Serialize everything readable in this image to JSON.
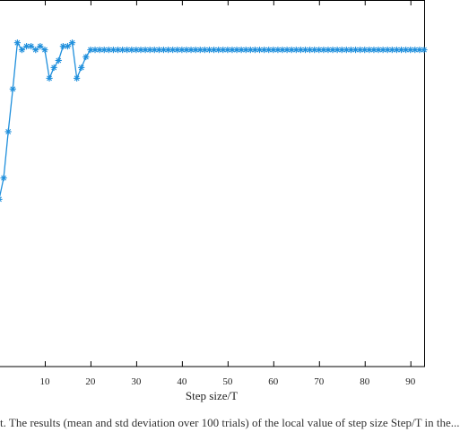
{
  "chart_data": {
    "type": "line",
    "xlabel": "Step size/T",
    "ylabel": "",
    "title": "",
    "xlim": [
      0,
      93
    ],
    "ylim": [
      0,
      1.03
    ],
    "x_ticks": [
      10,
      20,
      30,
      40,
      50,
      60,
      70,
      80,
      90
    ],
    "marker": "asterisk",
    "colors": {
      "series": "#1f8fdc",
      "axis": "#000000"
    },
    "series": [
      {
        "values": [
          [
            0,
            0.47
          ],
          [
            1,
            0.53
          ],
          [
            2,
            0.66
          ],
          [
            3,
            0.78
          ],
          [
            4,
            0.91
          ],
          [
            5,
            0.89
          ],
          [
            6,
            0.9
          ],
          [
            7,
            0.9
          ],
          [
            8,
            0.89
          ],
          [
            9,
            0.9
          ],
          [
            10,
            0.89
          ],
          [
            11,
            0.81
          ],
          [
            12,
            0.84
          ],
          [
            13,
            0.86
          ],
          [
            14,
            0.9
          ],
          [
            15,
            0.9
          ],
          [
            16,
            0.91
          ],
          [
            17,
            0.81
          ],
          [
            18,
            0.84
          ],
          [
            19,
            0.87
          ],
          [
            20,
            0.89
          ],
          [
            21,
            0.89
          ],
          [
            22,
            0.89
          ],
          [
            23,
            0.89
          ],
          [
            24,
            0.89
          ],
          [
            25,
            0.89
          ],
          [
            26,
            0.89
          ],
          [
            27,
            0.89
          ],
          [
            28,
            0.89
          ],
          [
            29,
            0.89
          ],
          [
            30,
            0.89
          ],
          [
            31,
            0.89
          ],
          [
            32,
            0.89
          ],
          [
            33,
            0.89
          ],
          [
            34,
            0.89
          ],
          [
            35,
            0.89
          ],
          [
            36,
            0.89
          ],
          [
            37,
            0.89
          ],
          [
            38,
            0.89
          ],
          [
            39,
            0.89
          ],
          [
            40,
            0.89
          ],
          [
            41,
            0.89
          ],
          [
            42,
            0.89
          ],
          [
            43,
            0.89
          ],
          [
            44,
            0.89
          ],
          [
            45,
            0.89
          ],
          [
            46,
            0.89
          ],
          [
            47,
            0.89
          ],
          [
            48,
            0.89
          ],
          [
            49,
            0.89
          ],
          [
            50,
            0.89
          ],
          [
            51,
            0.89
          ],
          [
            52,
            0.89
          ],
          [
            53,
            0.89
          ],
          [
            54,
            0.89
          ],
          [
            55,
            0.89
          ],
          [
            56,
            0.89
          ],
          [
            57,
            0.89
          ],
          [
            58,
            0.89
          ],
          [
            59,
            0.89
          ],
          [
            60,
            0.89
          ],
          [
            61,
            0.89
          ],
          [
            62,
            0.89
          ],
          [
            63,
            0.89
          ],
          [
            64,
            0.89
          ],
          [
            65,
            0.89
          ],
          [
            66,
            0.89
          ],
          [
            67,
            0.89
          ],
          [
            68,
            0.89
          ],
          [
            69,
            0.89
          ],
          [
            70,
            0.89
          ],
          [
            71,
            0.89
          ],
          [
            72,
            0.89
          ],
          [
            73,
            0.89
          ],
          [
            74,
            0.89
          ],
          [
            75,
            0.89
          ],
          [
            76,
            0.89
          ],
          [
            77,
            0.89
          ],
          [
            78,
            0.89
          ],
          [
            79,
            0.89
          ],
          [
            80,
            0.89
          ],
          [
            81,
            0.89
          ],
          [
            82,
            0.89
          ],
          [
            83,
            0.89
          ],
          [
            84,
            0.89
          ],
          [
            85,
            0.89
          ],
          [
            86,
            0.89
          ],
          [
            87,
            0.89
          ],
          [
            88,
            0.89
          ],
          [
            89,
            0.89
          ],
          [
            90,
            0.89
          ],
          [
            91,
            0.89
          ],
          [
            92,
            0.89
          ],
          [
            93,
            0.89
          ]
        ]
      }
    ]
  },
  "caption": "t. The results (mean and std deviation over 100 trials) of the local value of step size Step/T in the..."
}
